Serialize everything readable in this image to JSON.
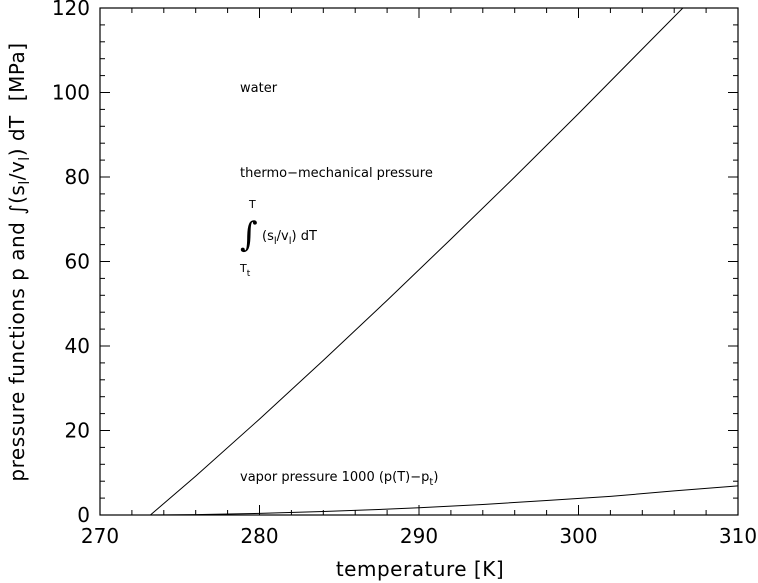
{
  "chart_data": {
    "type": "line",
    "title": "",
    "xlabel": "temperature   [K]",
    "ylabel_parts": {
      "main": "pressure functions p and ∫(s",
      "sub1": "l",
      "mid": "/v",
      "sub2": "l",
      "end": ") dT",
      "unit": "[MPa]"
    },
    "xlim": [
      270,
      310
    ],
    "ylim": [
      0,
      120
    ],
    "x_ticks": [
      270,
      280,
      290,
      300,
      310
    ],
    "y_ticks": [
      0,
      20,
      40,
      60,
      80,
      100,
      120
    ],
    "x_minor_step": 2,
    "y_minor_step": 4,
    "grid": false,
    "series": [
      {
        "x": [
          273.16,
          276,
          280,
          284,
          288,
          292,
          296,
          300,
          304,
          306.7
        ],
        "y": [
          0,
          9.2,
          22.7,
          36.6,
          50.8,
          65.3,
          80.0,
          95.0,
          110.3,
          120.6
        ]
      },
      {
        "x": [
          273.16,
          276,
          280,
          284,
          288,
          290,
          294,
          298,
          302,
          306,
          310
        ],
        "y": [
          0,
          0.08,
          0.39,
          0.82,
          1.39,
          1.73,
          2.5,
          3.42,
          4.4,
          5.7,
          6.9
        ]
      }
    ],
    "annotations": {
      "water": "water",
      "thermo": "thermo−mechanical pressure",
      "integral_upper": "T",
      "integral_lower": "T",
      "integral_lower_sub": "t",
      "integrand_open": "(s",
      "integrand_sub1": "l",
      "integrand_mid": "/v",
      "integrand_sub2": "l",
      "integrand_close": ") dT",
      "vapor_main": "vapor pressure 1000 (p(T)−p",
      "vapor_sub": "t",
      "vapor_close": ")"
    }
  }
}
